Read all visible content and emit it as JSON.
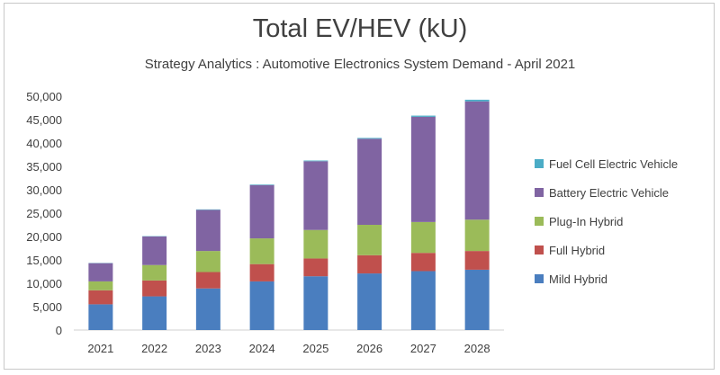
{
  "chart_data": {
    "type": "bar",
    "stacked": true,
    "title": "Total EV/HEV (kU)",
    "subtitle": "Strategy Analytics : Automotive Electronics System Demand - April 2021",
    "xlabel": "",
    "ylabel": "",
    "ylim": [
      0,
      50000
    ],
    "yticks": [
      0,
      5000,
      10000,
      15000,
      20000,
      25000,
      30000,
      35000,
      40000,
      45000,
      50000
    ],
    "ytick_labels": [
      "0",
      "5,000",
      "10,000",
      "15,000",
      "20,000",
      "25,000",
      "30,000",
      "35,000",
      "40,000",
      "45,000",
      "50,000"
    ],
    "grid": false,
    "legend_position": "right",
    "categories": [
      "2021",
      "2022",
      "2023",
      "2024",
      "2025",
      "2026",
      "2027",
      "2028"
    ],
    "series": [
      {
        "name": "Mild Hybrid",
        "color": "#4a7ebf",
        "values": [
          5500,
          7200,
          8900,
          10400,
          11500,
          12100,
          12600,
          12900
        ]
      },
      {
        "name": "Full Hybrid",
        "color": "#c0504d",
        "values": [
          3000,
          3400,
          3500,
          3700,
          3800,
          3900,
          3900,
          4000
        ]
      },
      {
        "name": "Plug-In Hybrid",
        "color": "#9bbb59",
        "values": [
          1900,
          3300,
          4500,
          5500,
          6100,
          6500,
          6600,
          6700
        ]
      },
      {
        "name": "Battery Electric Vehicle",
        "color": "#8064a2",
        "values": [
          3900,
          6100,
          8800,
          11400,
          14700,
          18400,
          22500,
          25300
        ]
      },
      {
        "name": "Fuel Cell Electric Vehicle",
        "color": "#4bacc6",
        "values": [
          50,
          70,
          100,
          120,
          150,
          180,
          250,
          350
        ]
      }
    ]
  }
}
